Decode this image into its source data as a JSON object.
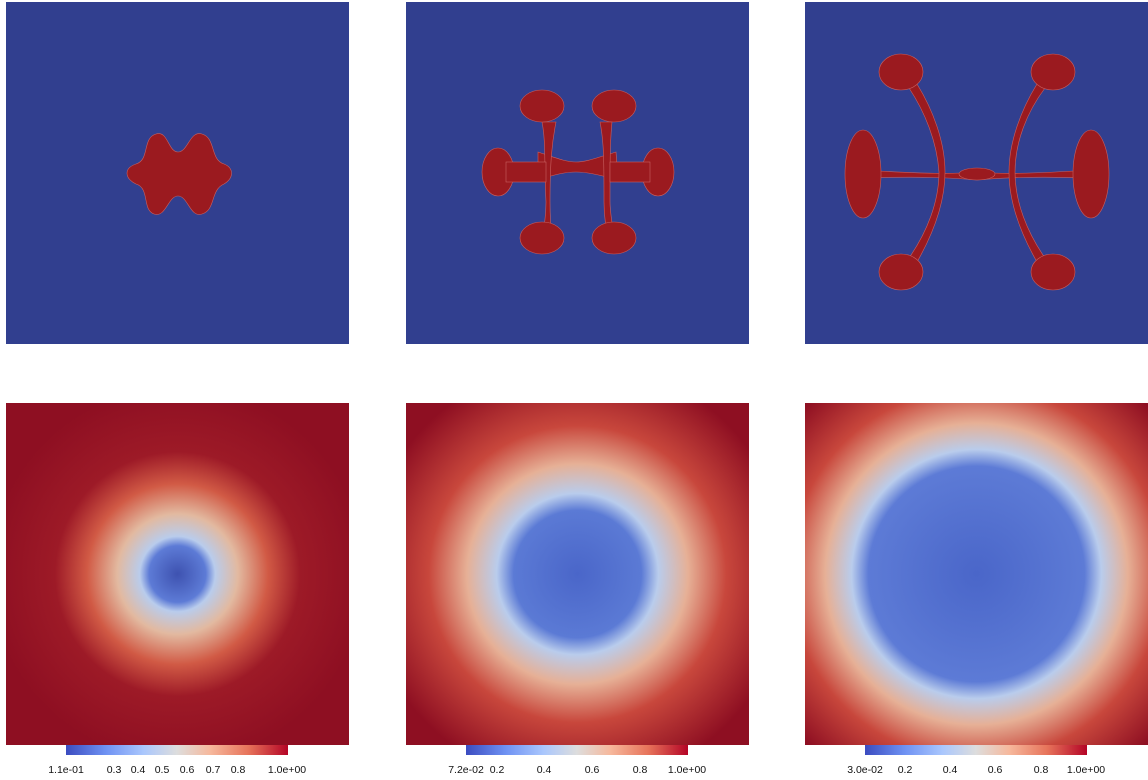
{
  "colorbars": [
    {
      "ticks": [
        "1.1e-01",
        "0.3",
        "0.4",
        "0.5",
        "0.6",
        "0.7",
        "0.8",
        "1.0e+00"
      ]
    },
    {
      "ticks": [
        "7.2e-02",
        "0.2",
        "0.4",
        "0.6",
        "0.8",
        "1.0e+00"
      ]
    },
    {
      "ticks": [
        "3.0e-02",
        "0.2",
        "0.4",
        "0.6",
        "0.8",
        "1.0e+00"
      ]
    }
  ],
  "colors": {
    "phase_bg": "#313f8f",
    "phase_fg": "#9b1a1f",
    "field_high": "#8e0f22",
    "field_low": "#4a66c9"
  }
}
